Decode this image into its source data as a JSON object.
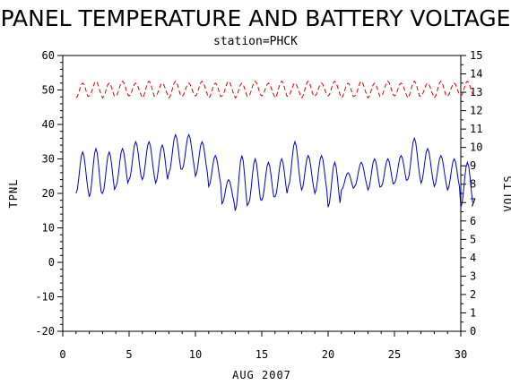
{
  "chart_data": {
    "type": "line",
    "title": "PANEL TEMPERATURE AND BATTERY VOLTAGE",
    "subtitle": "station=PHCK",
    "xlabel": "AUG 2007",
    "ylabel_left": "TPNL",
    "ylabel_right": "VOLTS",
    "xlim": [
      0,
      30
    ],
    "ylim_left": [
      -20,
      60
    ],
    "ylim_right": [
      0,
      15
    ],
    "x_ticks": [
      0,
      5,
      10,
      15,
      20,
      25,
      30
    ],
    "y_ticks_left": [
      -20,
      -10,
      0,
      10,
      20,
      30,
      40,
      50,
      60
    ],
    "y_ticks_right": [
      0,
      1,
      2,
      3,
      4,
      5,
      6,
      7,
      8,
      9,
      10,
      11,
      12,
      13,
      14,
      15
    ],
    "grid": false,
    "colors": {
      "tpnl": "#0000cc",
      "volts": "#dd0000",
      "axes": "#000000"
    },
    "series": [
      {
        "axis": "left",
        "style": "solid",
        "color": "#0000cc",
        "daily_min": [
          20,
          19,
          20,
          22,
          24,
          24,
          23,
          26,
          27,
          25,
          22,
          17,
          15,
          17,
          18,
          19,
          22,
          21,
          20,
          16,
          21,
          22,
          21,
          22,
          23,
          24,
          23,
          22,
          21,
          16
        ],
        "daily_max": [
          32,
          33,
          32,
          33,
          35,
          35,
          34,
          37,
          37,
          35,
          31,
          24,
          31,
          30,
          29,
          30,
          35,
          31,
          31,
          29,
          26,
          29,
          30,
          30,
          31,
          36,
          33,
          31,
          30,
          29
        ]
      },
      {
        "axis": "right",
        "style": "dashed",
        "color": "#dd0000",
        "daily_min": [
          12.7,
          12.8,
          12.7,
          12.8,
          12.8,
          12.7,
          12.8,
          12.7,
          12.8,
          12.8,
          12.7,
          12.8,
          12.7,
          12.8,
          12.8,
          12.7,
          12.8,
          12.7,
          12.8,
          12.8,
          12.7,
          12.8,
          12.7,
          12.8,
          12.8,
          12.7,
          12.8,
          12.7,
          12.8,
          12.8
        ],
        "daily_max": [
          13.5,
          13.6,
          13.5,
          13.6,
          13.5,
          13.6,
          13.5,
          13.6,
          13.5,
          13.6,
          13.5,
          13.6,
          13.5,
          13.6,
          13.5,
          13.6,
          13.5,
          13.6,
          13.5,
          13.6,
          13.5,
          13.6,
          13.5,
          13.6,
          13.5,
          13.6,
          13.5,
          13.6,
          13.5,
          13.6
        ]
      }
    ]
  }
}
